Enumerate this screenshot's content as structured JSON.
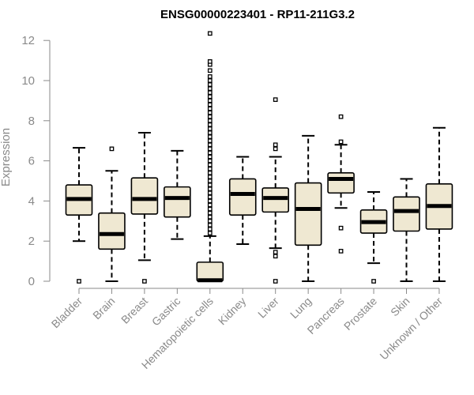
{
  "chart_data": {
    "type": "box",
    "title": "ENSG00000223401 - RP11-211G3.2",
    "xlabel": "",
    "ylabel": "Expression",
    "ylim": [
      0,
      12.4
    ],
    "yticks": [
      0,
      2,
      4,
      6,
      8,
      10,
      12
    ],
    "box_color": "#efe8d2",
    "categories": [
      "Bladder",
      "Brain",
      "Breast",
      "Gastric",
      "Hematopoietic cells",
      "Kidney",
      "Liver",
      "Lung",
      "Pancreas",
      "Prostate",
      "Skin",
      "Unknown / Other"
    ],
    "boxes": [
      {
        "name": "Bladder",
        "whisker_low": 2.0,
        "q1": 3.3,
        "median": 4.1,
        "q3": 4.8,
        "whisker_high": 6.65,
        "outliers": [
          0.0
        ]
      },
      {
        "name": "Brain",
        "whisker_low": 0.0,
        "q1": 1.6,
        "median": 2.35,
        "q3": 3.4,
        "whisker_high": 5.5,
        "outliers": [
          6.6
        ]
      },
      {
        "name": "Breast",
        "whisker_low": 1.05,
        "q1": 3.35,
        "median": 4.1,
        "q3": 5.15,
        "whisker_high": 7.4,
        "outliers": [
          0.0
        ]
      },
      {
        "name": "Gastric",
        "whisker_low": 2.1,
        "q1": 3.2,
        "median": 4.15,
        "q3": 4.7,
        "whisker_high": 6.5,
        "outliers": []
      },
      {
        "name": "Hematopoietic cells",
        "whisker_low": 0.0,
        "q1": 0.0,
        "median": 0.05,
        "q3": 0.95,
        "whisker_high": 2.25,
        "outliers": [
          2.4,
          2.6,
          2.8,
          3.0,
          3.2,
          3.4,
          3.6,
          3.8,
          4.0,
          4.2,
          4.4,
          4.6,
          4.8,
          5.0,
          5.2,
          5.4,
          5.6,
          5.8,
          6.0,
          6.2,
          6.4,
          6.6,
          6.8,
          7.0,
          7.2,
          7.4,
          7.6,
          7.8,
          8.0,
          8.2,
          8.4,
          8.6,
          8.8,
          9.0,
          9.2,
          9.4,
          9.6,
          9.8,
          10.0,
          10.2,
          10.5,
          10.8,
          10.95,
          12.35
        ]
      },
      {
        "name": "Kidney",
        "whisker_low": 1.85,
        "q1": 3.3,
        "median": 4.35,
        "q3": 5.1,
        "whisker_high": 6.2,
        "outliers": []
      },
      {
        "name": "Liver",
        "whisker_low": 1.65,
        "q1": 3.45,
        "median": 4.15,
        "q3": 4.65,
        "whisker_high": 6.2,
        "outliers": [
          0.0,
          1.25,
          1.45,
          6.6,
          6.8,
          9.05
        ]
      },
      {
        "name": "Lung",
        "whisker_low": 0.0,
        "q1": 1.8,
        "median": 3.6,
        "q3": 4.9,
        "whisker_high": 7.25,
        "outliers": []
      },
      {
        "name": "Pancreas",
        "whisker_low": 3.65,
        "q1": 4.4,
        "median": 5.1,
        "q3": 5.4,
        "whisker_high": 6.8,
        "outliers": [
          1.5,
          2.65,
          6.95,
          8.2
        ]
      },
      {
        "name": "Prostate",
        "whisker_low": 0.9,
        "q1": 2.4,
        "median": 2.95,
        "q3": 3.55,
        "whisker_high": 4.45,
        "outliers": [
          0.0
        ]
      },
      {
        "name": "Skin",
        "whisker_low": 0.0,
        "q1": 2.5,
        "median": 3.5,
        "q3": 4.2,
        "whisker_high": 5.1,
        "outliers": []
      },
      {
        "name": "Unknown / Other",
        "whisker_low": 0.0,
        "q1": 2.6,
        "median": 3.75,
        "q3": 4.85,
        "whisker_high": 7.65,
        "outliers": []
      }
    ]
  }
}
